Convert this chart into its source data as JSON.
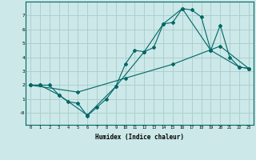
{
  "xlabel": "Humidex (Indice chaleur)",
  "ylabel": "",
  "bg_color": "#cce8e8",
  "grid_color": "#aacccc",
  "line_color": "#006666",
  "xlim": [
    -0.5,
    23.5
  ],
  "ylim": [
    -0.85,
    8.0
  ],
  "xticks": [
    0,
    1,
    2,
    3,
    4,
    5,
    6,
    7,
    8,
    9,
    10,
    11,
    12,
    13,
    14,
    15,
    16,
    17,
    18,
    19,
    20,
    21,
    22,
    23
  ],
  "yticks": [
    0,
    1,
    2,
    3,
    4,
    5,
    6,
    7
  ],
  "ytick_labels": [
    "-0",
    "1",
    "2",
    "3",
    "4",
    "5",
    "6",
    "7"
  ],
  "line1_x": [
    0,
    1,
    2,
    3,
    4,
    5,
    6,
    7,
    8,
    9,
    10,
    11,
    12,
    13,
    14,
    15,
    16,
    17,
    18,
    19,
    20,
    21,
    22,
    23
  ],
  "line1_y": [
    2.0,
    2.0,
    2.0,
    1.3,
    0.8,
    0.7,
    -0.2,
    0.4,
    1.0,
    1.9,
    3.5,
    4.5,
    4.4,
    4.7,
    6.4,
    6.5,
    7.5,
    7.4,
    6.9,
    4.5,
    6.3,
    4.0,
    3.3,
    3.2
  ],
  "line2_x": [
    0,
    1,
    3,
    6,
    9,
    12,
    14,
    16,
    19,
    22,
    23
  ],
  "line2_y": [
    2.0,
    2.0,
    1.3,
    -0.15,
    1.9,
    4.4,
    6.4,
    7.5,
    4.5,
    3.3,
    3.2
  ],
  "line3_x": [
    0,
    5,
    10,
    15,
    20,
    23
  ],
  "line3_y": [
    2.0,
    1.5,
    2.5,
    3.5,
    4.8,
    3.2
  ]
}
